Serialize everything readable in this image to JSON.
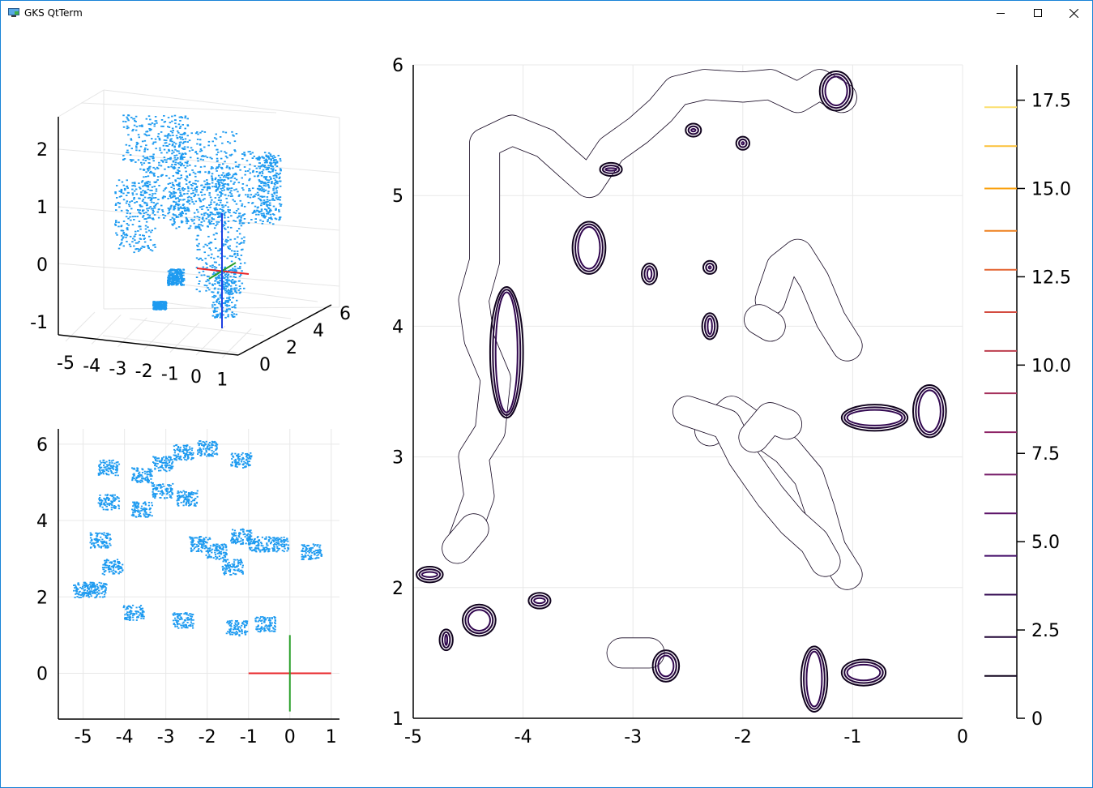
{
  "window": {
    "title": "GKS QtTerm",
    "icons": {
      "app": "gks-app-icon",
      "minimize": "minimize-icon",
      "maximize": "maximize-icon",
      "close": "close-icon"
    }
  },
  "chart_data": [
    {
      "type": "scatter3d",
      "title": "",
      "xlabel": "",
      "ylabel": "",
      "zlabel": "",
      "x_ticks": [
        "-5",
        "-4",
        "-3",
        "-2",
        "-1",
        "0",
        "1"
      ],
      "y_ticks": [
        "0",
        "2",
        "4",
        "6"
      ],
      "z_ticks": [
        "-1",
        "0",
        "1",
        "2"
      ],
      "xlim": [
        -5,
        1
      ],
      "ylim": [
        0,
        6
      ],
      "zlim": [
        -1,
        2.5
      ],
      "point_color": "#1e9bf0",
      "axis_colors": {
        "x": "#e8262a",
        "y": "#2aa02a",
        "z": "#1f3fe0"
      },
      "grid": true
    },
    {
      "type": "scatter",
      "title": "",
      "xlabel": "",
      "ylabel": "",
      "x_ticks": [
        "-5",
        "-4",
        "-3",
        "-2",
        "-1",
        "0",
        "1"
      ],
      "y_ticks": [
        "0",
        "2",
        "4",
        "6"
      ],
      "xlim": [
        -5.6,
        1.2
      ],
      "ylim": [
        -1.2,
        6.4
      ],
      "point_color": "#1e9bf0",
      "axis_colors": {
        "x": "#e8262a",
        "y": "#2aa02a"
      },
      "frame": {
        "x": [
          -1,
          1
        ],
        "y": [
          -1,
          1
        ]
      },
      "grid": true
    },
    {
      "type": "contour",
      "title": "",
      "xlabel": "",
      "ylabel": "",
      "x_ticks": [
        "-5",
        "-4",
        "-3",
        "-2",
        "-1",
        "0"
      ],
      "y_ticks": [
        "1",
        "2",
        "3",
        "4",
        "5",
        "6"
      ],
      "xlim": [
        -5,
        0
      ],
      "ylim": [
        1,
        6
      ],
      "colorbar": {
        "ticks": [
          "0",
          "2.5",
          "5.0",
          "7.5",
          "10.0",
          "12.5",
          "15.0",
          "17.5"
        ],
        "range": [
          0,
          18.5
        ],
        "levels": [
          1.2,
          2.3,
          3.5,
          4.6,
          5.8,
          6.9,
          8.1,
          9.2,
          10.4,
          11.5,
          12.7,
          13.8,
          15.0,
          16.2,
          17.3
        ]
      },
      "grid": true
    }
  ]
}
